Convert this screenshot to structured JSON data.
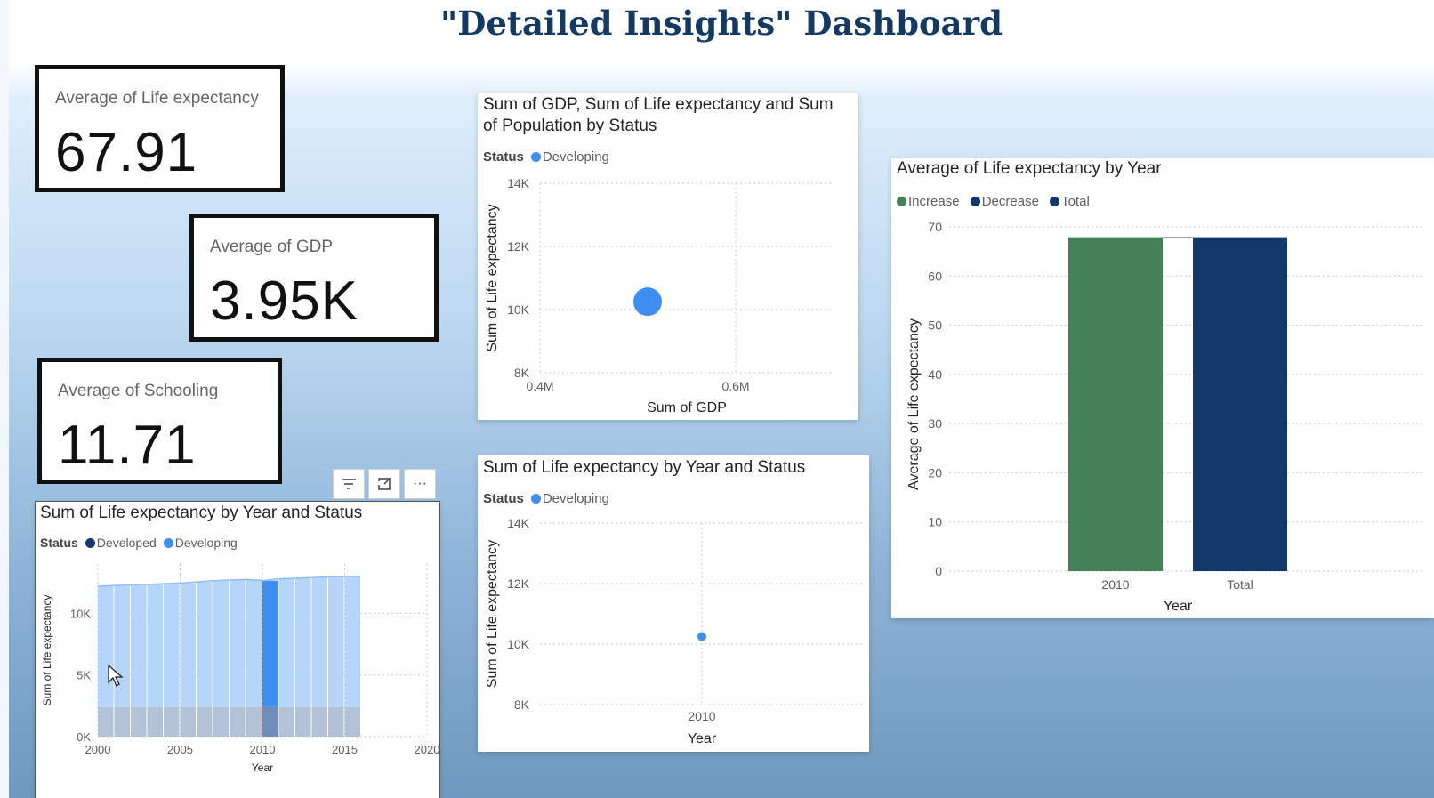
{
  "dashboard": {
    "title": "\"Detailed Insights\" Dashboard"
  },
  "kpis": [
    {
      "label": "Average of Life expectancy",
      "value": "67.91"
    },
    {
      "label": "Average of GDP",
      "value": "3.95K"
    },
    {
      "label": "Average of Schooling",
      "value": "11.71"
    }
  ],
  "toolbar": {
    "filter_icon": "filter-icon",
    "focus_icon": "focus-mode-icon",
    "more_icon": "more-options-icon",
    "more_label": "···"
  },
  "colors": {
    "developing": "#3d8ef0",
    "developed": "#12396a",
    "increase": "#458156",
    "decrease": "#12396a",
    "total": "#12396a"
  },
  "chart_data": [
    {
      "id": "scatter_gdp",
      "type": "scatter",
      "title": "Sum of GDP, Sum of Life expectancy and Sum of Population by Status",
      "title_line1": "Sum of GDP, Sum of Life expectancy and Sum",
      "title_line2": "of Population by Status",
      "legend_title": "Status",
      "legend": [
        "Developing"
      ],
      "xlabel": "Sum of GDP",
      "ylabel": "Sum of Life expectancy",
      "xticks": [
        "0.4M",
        "0.6M"
      ],
      "yticks": [
        "14K",
        "12K",
        "10K",
        "8K"
      ],
      "xlim": [
        0.4,
        0.7
      ],
      "ylim": [
        8000,
        14000
      ],
      "points": [
        {
          "series": "Developing",
          "x": 0.51,
          "y": 10250
        }
      ]
    },
    {
      "id": "scatter_year",
      "type": "scatter",
      "title": "Sum of Life expectancy by Year and Status",
      "legend_title": "Status",
      "legend": [
        "Developing"
      ],
      "xlabel": "Year",
      "ylabel": "Sum of Life expectancy",
      "xticks": [
        "2010"
      ],
      "yticks": [
        "14K",
        "12K",
        "10K",
        "8K"
      ],
      "ylim": [
        8000,
        14000
      ],
      "points": [
        {
          "series": "Developing",
          "x": "2010",
          "y": 10250
        }
      ]
    },
    {
      "id": "waterfall",
      "type": "bar",
      "title": "Average of Life expectancy by Year",
      "legend": [
        "Increase",
        "Decrease",
        "Total"
      ],
      "categories": [
        "2010",
        "Total"
      ],
      "values": [
        67.9,
        67.9
      ],
      "xlabel": "Year",
      "ylabel": "Average of Life expectancy",
      "yticks": [
        "70",
        "60",
        "50",
        "40",
        "30",
        "20",
        "10",
        "0"
      ],
      "ylim": [
        0,
        70
      ]
    },
    {
      "id": "area",
      "type": "area",
      "title": "Sum of Life expectancy by Year and Status",
      "legend_title": "Status",
      "legend": [
        "Developed",
        "Developing"
      ],
      "xlabel": "Year",
      "ylabel": "Sum of Life expectancy",
      "xticks": [
        "2000",
        "2005",
        "2010",
        "2015",
        "2020"
      ],
      "yticks": [
        "10K",
        "5K",
        "0K"
      ],
      "xlim": [
        2000,
        2020
      ],
      "ylim": [
        0,
        14000
      ],
      "x": [
        2000,
        2001,
        2002,
        2003,
        2004,
        2005,
        2006,
        2007,
        2008,
        2009,
        2010,
        2011,
        2012,
        2013,
        2014,
        2015
      ],
      "series": [
        {
          "name": "Developed",
          "values": [
            2400,
            2400,
            2400,
            2400,
            2400,
            2400,
            2400,
            2400,
            2400,
            2400,
            2400,
            2400,
            2400,
            2400,
            2400,
            2400
          ]
        },
        {
          "name": "Developing",
          "values": [
            9800,
            9850,
            9900,
            9950,
            10000,
            10050,
            10150,
            10250,
            10300,
            10350,
            10250,
            10400,
            10450,
            10500,
            10550,
            10600
          ]
        }
      ],
      "highlight_x": 2010
    }
  ]
}
